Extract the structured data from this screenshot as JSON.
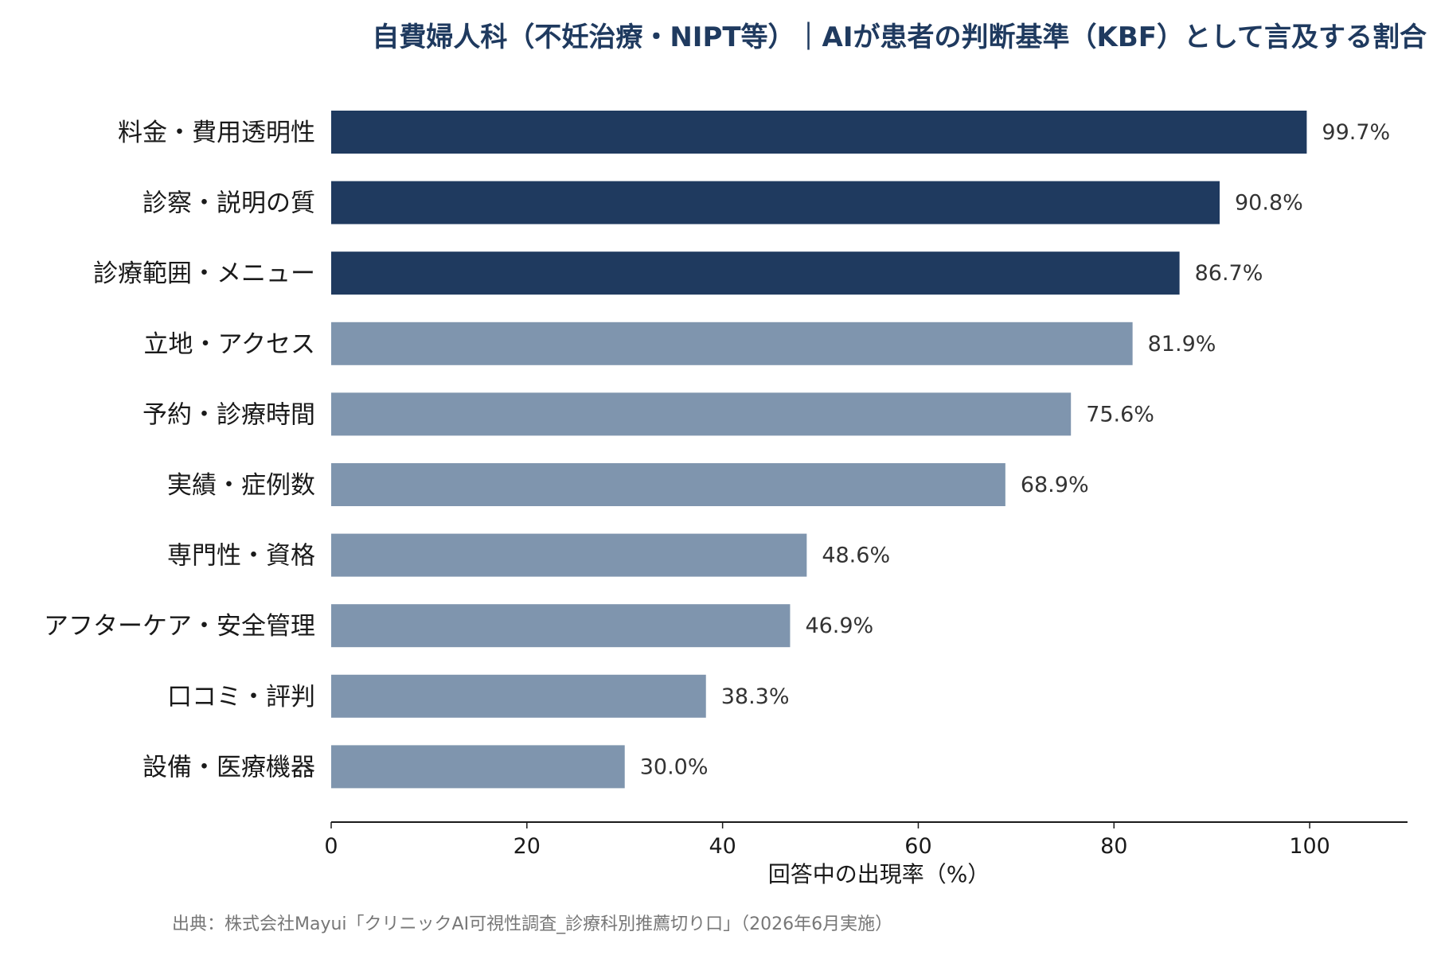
{
  "chart_data": {
    "type": "bar",
    "orientation": "horizontal",
    "title": "自費婦人科（不妊治療・NIPT等）｜AIが患者の判断基準（KBF）として言及する割合",
    "xlabel": "回答中の出現率（%）",
    "ylabel": "",
    "xlim": [
      0,
      110
    ],
    "xticks": [
      0,
      20,
      40,
      60,
      80,
      100
    ],
    "categories": [
      "料金・費用透明性",
      "診察・説明の質",
      "診療範囲・メニュー",
      "立地・アクセス",
      "予約・診療時間",
      "実績・症例数",
      "専門性・資格",
      "アフターケア・安全管理",
      "口コミ・評判",
      "設備・医療機器"
    ],
    "values": [
      99.7,
      90.8,
      86.7,
      81.9,
      75.6,
      68.9,
      48.6,
      46.9,
      38.3,
      30.0
    ],
    "value_labels": [
      "99.7%",
      "90.8%",
      "86.7%",
      "81.9%",
      "75.6%",
      "68.9%",
      "48.6%",
      "46.9%",
      "38.3%",
      "30.0%"
    ],
    "highlight_top_n": 3,
    "colors": {
      "highlight": "#1f3a5f",
      "normal": "#7f95ae",
      "axis": "#1a1a1a",
      "title": "#1f3a5f"
    },
    "grid": false,
    "legend": "none"
  },
  "source_note": "出典：株式会社Mayui「クリニックAI可視性調査_診療科別推薦切り口」（2026年6月実施）"
}
